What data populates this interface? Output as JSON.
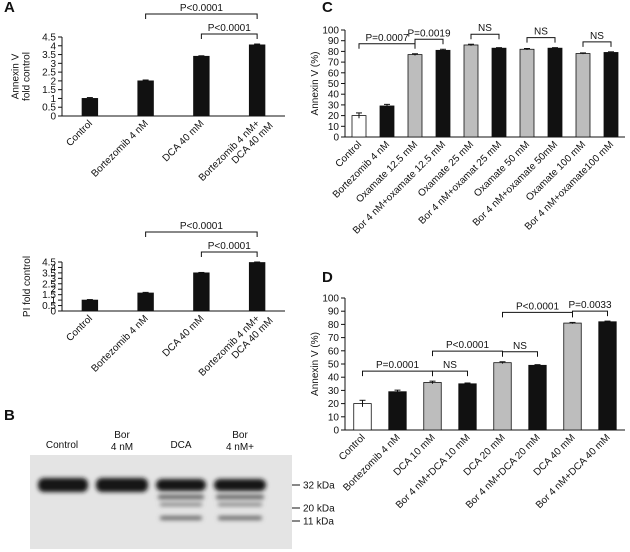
{
  "chart_data": [
    {
      "type": "bar",
      "panel": "A",
      "ylabel": [
        "Annexin V",
        "fold control"
      ],
      "categories": [
        "Control",
        "Bortezomib 4 nM",
        "DCA 40 mM",
        [
          "Bortezomib 4 nM+",
          "DCA 40 mM"
        ]
      ],
      "values": [
        1.0,
        2.0,
        3.4,
        4.05
      ],
      "errors": [
        0.05,
        0.05,
        0.03,
        0.05
      ],
      "colors": [
        "#111111",
        "#111111",
        "#111111",
        "#111111"
      ],
      "ylim": [
        0,
        4.5
      ],
      "yticks": [
        0,
        0.5,
        1,
        1.5,
        2,
        2.5,
        3,
        3.5,
        4,
        4.5
      ],
      "annotations": [
        {
          "text": "P<0.0001",
          "from": 2,
          "to": 3
        },
        {
          "text": "P<0.0001",
          "from": 1,
          "to": 3
        }
      ]
    },
    {
      "type": "bar",
      "ylabel": [
        "PI fold control"
      ],
      "categories": [
        "Control",
        "Bortezomib 4 nM",
        "DCA 40 mM",
        [
          "Bortezomib 4 nM+",
          "DCA 40 mM"
        ]
      ],
      "values": [
        1.0,
        1.65,
        3.5,
        4.45
      ],
      "errors": [
        0.05,
        0.06,
        0.04,
        0.05
      ],
      "colors": [
        "#111111",
        "#111111",
        "#111111",
        "#111111"
      ],
      "ylim": [
        0,
        4.5
      ],
      "yticks": [
        0,
        0.5,
        1,
        1.5,
        2,
        2.5,
        3,
        3.5,
        4,
        4.5
      ],
      "annotations": [
        {
          "text": "P<0.0001",
          "from": 2,
          "to": 3
        },
        {
          "text": "P<0.0001",
          "from": 1,
          "to": 3
        }
      ]
    },
    {
      "type": "bar",
      "panel": "C",
      "ylabel": [
        "Annexin V (%)"
      ],
      "categories": [
        "Control",
        "Bortezomib 4 nM",
        "Oxamate 12.5 mM",
        "Bor 4 nM+oxamate 12.5 mM",
        "Oxamate 25 mM",
        "Bor 4 nM+oxamat 25 mM",
        "Oxamate 50 mM",
        "Bor 4 nM+oxamate 50mM",
        "Oxamate 100 mM",
        "Bor 4 nM+oxamate100 mM"
      ],
      "values": [
        20,
        29,
        77,
        81,
        86,
        83,
        82,
        83,
        78,
        79
      ],
      "errors": [
        2.5,
        1.5,
        0.8,
        1,
        0.7,
        0.5,
        0.7,
        0.5,
        0.6,
        0.6
      ],
      "colors": [
        "#ffffff",
        "#111111",
        "#bdbdbd",
        "#111111",
        "#bdbdbd",
        "#111111",
        "#bdbdbd",
        "#111111",
        "#bdbdbd",
        "#111111"
      ],
      "ylim": [
        0,
        100
      ],
      "yticks": [
        0,
        10,
        20,
        30,
        40,
        50,
        60,
        70,
        80,
        90,
        100
      ],
      "annotations": [
        {
          "text": "P=0.0007",
          "from": 0,
          "to": 2
        },
        {
          "text": "P=0.0019",
          "from": 2,
          "to": 3
        },
        {
          "text": "NS",
          "from": 4,
          "to": 5
        },
        {
          "text": "NS",
          "from": 6,
          "to": 7
        },
        {
          "text": "NS",
          "from": 8,
          "to": 9
        }
      ]
    },
    {
      "type": "bar",
      "panel": "D",
      "ylabel": [
        "Annexin V (%)"
      ],
      "categories": [
        "Control",
        "Bortezomib 4 nM",
        "DCA 10 mM",
        "Bor 4 nM+DCA 10 mM",
        "DCA 20 mM",
        "Bor 4 nM+DCA 20 mM",
        "DCA 40 mM",
        "Bor 4 nM+DCA 40 mM"
      ],
      "values": [
        20,
        29,
        36,
        35,
        51,
        49,
        81,
        82
      ],
      "errors": [
        2.5,
        1.2,
        1,
        0.6,
        0.7,
        0.5,
        0.5,
        0.5
      ],
      "colors": [
        "#ffffff",
        "#111111",
        "#bdbdbd",
        "#111111",
        "#bdbdbd",
        "#111111",
        "#bdbdbd",
        "#111111"
      ],
      "ylim": [
        0,
        100
      ],
      "yticks": [
        0,
        10,
        20,
        30,
        40,
        50,
        60,
        70,
        80,
        90,
        100
      ],
      "annotations": [
        {
          "text": "P=0.0001",
          "from": 0,
          "to": 2
        },
        {
          "text": "NS",
          "from": 2,
          "to": 3
        },
        {
          "text": "NS",
          "from": 4,
          "to": 5
        },
        {
          "text": "P<0.0001",
          "from": 2,
          "to": 4
        },
        {
          "text": "P=0.0033",
          "from": 6,
          "to": 7
        },
        {
          "text": "P<0.0001",
          "from": 4,
          "to": 6
        }
      ]
    }
  ],
  "blot": {
    "panel": "B",
    "lanes": [
      [
        "Control"
      ],
      [
        "Bor",
        "4 nM"
      ],
      [
        "DCA"
      ],
      [
        "Bor",
        "4 nM+"
      ]
    ],
    "markers": [
      "32 kDa",
      "20 kDa",
      "11 kDa"
    ]
  }
}
